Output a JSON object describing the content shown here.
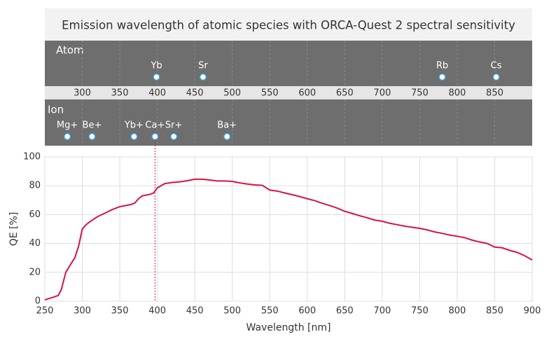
{
  "chart_data": {
    "type": "line",
    "title": "Emission wavelength of atomic species with ORCA-Quest 2 spectral sensitivity",
    "atom": {
      "label": "Atom",
      "species": [
        {
          "name": "Yb",
          "value": 399
        },
        {
          "name": "Sr",
          "value": 461
        },
        {
          "name": "Rb",
          "value": 780
        },
        {
          "name": "Cs",
          "value": 852
        }
      ]
    },
    "ion": {
      "label": "Ion",
      "species": [
        {
          "name": "Mg+",
          "value": 280
        },
        {
          "name": "Be+",
          "value": 313
        },
        {
          "name": "Yb+",
          "value": 369
        },
        {
          "name": "Ca+",
          "value": 397
        },
        {
          "name": "Sr+",
          "value": 422
        },
        {
          "name": "Ba+",
          "value": 493
        }
      ]
    },
    "band_ticks": [
      300,
      350,
      400,
      450,
      500,
      550,
      600,
      650,
      700,
      750,
      800,
      850
    ],
    "x_label": "Wavelength [nm]",
    "y_label": "QE [%]",
    "x": [
      250,
      260,
      268,
      272,
      278,
      285,
      290,
      295,
      300,
      305,
      310,
      320,
      330,
      340,
      350,
      360,
      365,
      370,
      375,
      380,
      390,
      395,
      400,
      410,
      420,
      430,
      440,
      450,
      460,
      470,
      480,
      490,
      500,
      510,
      520,
      530,
      540,
      550,
      560,
      570,
      580,
      590,
      600,
      610,
      620,
      630,
      640,
      650,
      660,
      670,
      680,
      690,
      700,
      710,
      720,
      730,
      740,
      750,
      760,
      770,
      780,
      790,
      800,
      810,
      820,
      830,
      840,
      850,
      860,
      870,
      880,
      890,
      900
    ],
    "series": [
      {
        "color": "#d6143f",
        "values": [
          1,
          2.5,
          4,
          8,
          20,
          26,
          30,
          38,
          50,
          53,
          55,
          58.5,
          61,
          63.5,
          65.5,
          66.5,
          67,
          68,
          71,
          73,
          74,
          75,
          78.5,
          81.5,
          82.3,
          82.7,
          83.5,
          84.5,
          84.5,
          84,
          83.3,
          83.3,
          83,
          82,
          81.2,
          80.6,
          80.3,
          77,
          76.3,
          75,
          73.8,
          72.5,
          71,
          69.7,
          67.8,
          66.3,
          64.5,
          62.3,
          60.8,
          59.2,
          57.8,
          56.2,
          55.4,
          54,
          53,
          52,
          51.2,
          50.5,
          49.4,
          48,
          47,
          45.8,
          45,
          44,
          42.3,
          41,
          40,
          37.5,
          37,
          35.2,
          33.8,
          31.5,
          28.5
        ]
      }
    ],
    "xlim": [
      250,
      900
    ],
    "xticks": [
      250,
      300,
      350,
      400,
      450,
      500,
      550,
      600,
      650,
      700,
      750,
      800,
      850,
      900
    ],
    "ylim": [
      0,
      100
    ],
    "yticks": [
      0,
      20,
      40,
      60,
      80,
      100
    ],
    "grid": true
  }
}
